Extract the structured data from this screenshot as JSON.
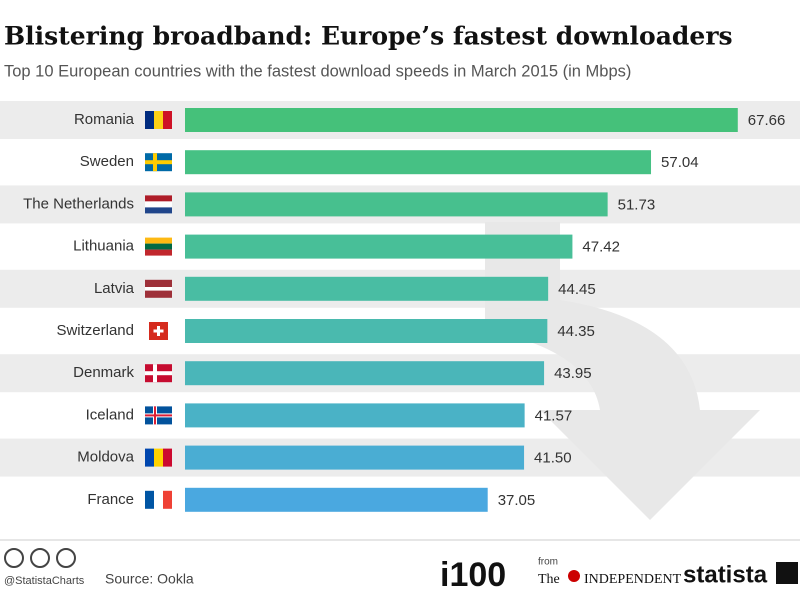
{
  "chart_data": {
    "type": "bar",
    "orientation": "horizontal",
    "title": "Blistering broadband: Europe’s fastest downloaders",
    "subtitle": "Top 10 European countries with the fastest download speeds in March 2015 (in Mbps)",
    "categories": [
      "Romania",
      "Sweden",
      "The Netherlands",
      "Lithuania",
      "Latvia",
      "Switzerland",
      "Denmark",
      "Iceland",
      "Moldova",
      "France"
    ],
    "values": [
      67.66,
      57.04,
      51.73,
      47.42,
      44.45,
      44.35,
      43.95,
      41.57,
      41.5,
      37.05
    ],
    "value_labels": [
      "67.66",
      "57.04",
      "51.73",
      "47.42",
      "44.45",
      "44.35",
      "43.95",
      "41.57",
      "41.50",
      "37.05"
    ],
    "colors": [
      "#45c17a",
      "#46c184",
      "#47c08e",
      "#48bf98",
      "#49bda3",
      "#4abaae",
      "#4ab6b9",
      "#4ab2c6",
      "#4aadd3",
      "#4aa8e0"
    ],
    "credit": "@StatistaCharts",
    "source": "Source: Ookla",
    "logos": [
      "i100",
      "from",
      "The",
      "INDEPENDENT",
      "statista"
    ]
  }
}
